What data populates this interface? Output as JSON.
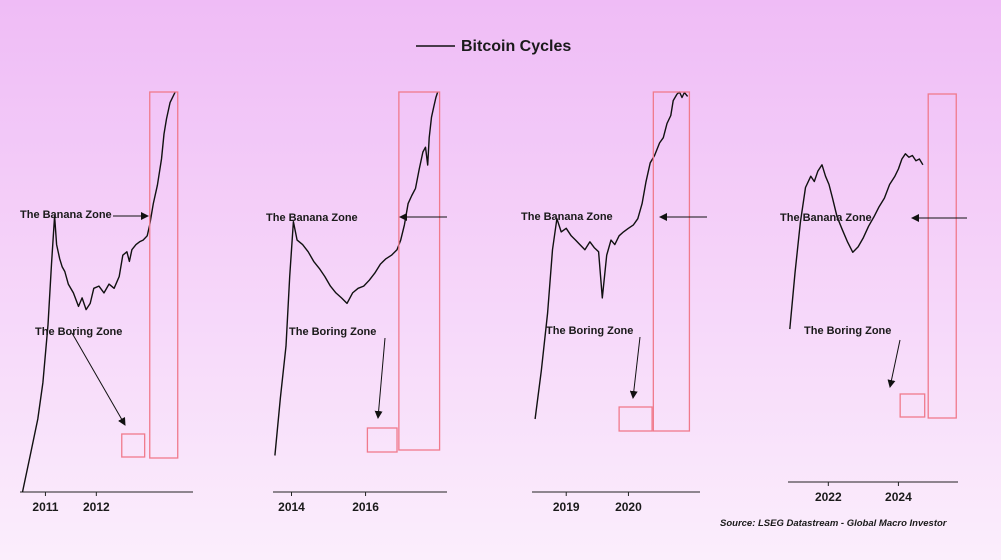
{
  "chart_data": {
    "type": "line",
    "title": "Bitcoin Cycles",
    "legend": {
      "entries": [
        "Bitcoin Cycles"
      ],
      "placement": "top-center"
    },
    "annotation_labels": {
      "banana": "The Banana Zone",
      "boring": "The Boring Zone"
    },
    "source": "Source: LSEG Datastream - Global Macro Investor",
    "style": {
      "line_color": "#111111",
      "box_color": "#f07a8c",
      "arrow_color": "#111111"
    },
    "panels": [
      {
        "tick_labels": [
          "2011",
          "2012"
        ],
        "tick_values": [
          2011,
          2012
        ],
        "xlim": [
          2010.5,
          2013.9
        ],
        "series": {
          "x": [
            2010.55,
            2010.7,
            2010.85,
            2010.95,
            2011.05,
            2011.12,
            2011.18,
            2011.22,
            2011.28,
            2011.33,
            2011.38,
            2011.45,
            2011.55,
            2011.65,
            2011.72,
            2011.8,
            2011.88,
            2011.95,
            2012.05,
            2012.15,
            2012.25,
            2012.35,
            2012.45,
            2012.52,
            2012.6,
            2012.65,
            2012.7,
            2012.78,
            2012.85,
            2012.92,
            2013.0,
            2013.05,
            2013.12,
            2013.2,
            2013.28,
            2013.33,
            2013.38,
            2013.45,
            2013.55
          ],
          "y": [
            0.5,
            1,
            2,
            4,
            12,
            38,
            95,
            55,
            42,
            36,
            33,
            26,
            22,
            17,
            20,
            16,
            18,
            24,
            25,
            22,
            26,
            24,
            30,
            45,
            48,
            40,
            50,
            55,
            58,
            60,
            65,
            80,
            120,
            170,
            280,
            450,
            600,
            820,
            1000
          ]
        },
        "banana_zone": {
          "x_range": [
            2013.05,
            2013.6
          ]
        },
        "boring_zone": {
          "x_range": [
            2012.5,
            2012.95
          ]
        }
      },
      {
        "tick_labels": [
          "2014",
          "2016"
        ],
        "tick_values": [
          2014,
          2016
        ],
        "xlim": [
          2013.5,
          2018.2
        ],
        "series": {
          "x": [
            2013.55,
            2013.7,
            2013.85,
            2013.95,
            2014.05,
            2014.15,
            2014.3,
            2014.45,
            2014.6,
            2014.75,
            2014.9,
            2015.05,
            2015.2,
            2015.35,
            2015.5,
            2015.65,
            2015.8,
            2015.95,
            2016.1,
            2016.25,
            2016.4,
            2016.55,
            2016.7,
            2016.85,
            2016.95,
            2017.05,
            2017.15,
            2017.25,
            2017.35,
            2017.45,
            2017.55,
            2017.62,
            2017.68,
            2017.72,
            2017.78,
            2017.84,
            2017.9,
            2017.95
          ],
          "y": [
            1,
            3,
            8,
            30,
            85,
            60,
            55,
            48,
            40,
            35,
            30,
            25,
            22,
            20,
            18,
            22,
            24,
            25,
            28,
            32,
            38,
            42,
            45,
            50,
            60,
            80,
            120,
            140,
            160,
            230,
            320,
            350,
            250,
            420,
            620,
            750,
            900,
            1000
          ]
        },
        "banana_zone": {
          "x_range": [
            2016.9,
            2018.0
          ]
        },
        "boring_zone": {
          "x_range": [
            2016.05,
            2016.85
          ]
        }
      },
      {
        "tick_labels": [
          "2019",
          "2020"
        ],
        "tick_values": [
          2019,
          2020
        ],
        "xlim": [
          2018.45,
          2021.15
        ],
        "series": {
          "x": [
            2018.5,
            2018.6,
            2018.7,
            2018.78,
            2018.85,
            2018.92,
            2019.0,
            2019.08,
            2019.15,
            2019.22,
            2019.3,
            2019.38,
            2019.45,
            2019.52,
            2019.58,
            2019.65,
            2019.72,
            2019.78,
            2019.85,
            2019.92,
            2020.0,
            2020.08,
            2020.15,
            2020.22,
            2020.28,
            2020.35,
            2020.42,
            2020.5,
            2020.56,
            2020.62,
            2020.68,
            2020.72,
            2020.78,
            2020.82,
            2020.86,
            2020.9,
            2020.95
          ],
          "y": [
            2,
            5,
            15,
            50,
            90,
            70,
            75,
            65,
            60,
            55,
            50,
            58,
            52,
            48,
            20,
            45,
            60,
            55,
            65,
            70,
            75,
            80,
            90,
            120,
            180,
            260,
            300,
            380,
            420,
            550,
            640,
            850,
            960,
            1000,
            900,
            990,
            920
          ]
        },
        "banana_zone": {
          "x_range": [
            2020.4,
            2020.98
          ]
        },
        "boring_zone": {
          "x_range": [
            2019.85,
            2020.38
          ]
        }
      },
      {
        "tick_labels": [
          "2022",
          "2024"
        ],
        "tick_values": [
          2022,
          2024
        ],
        "xlim": [
          2020.85,
          2025.7
        ],
        "series": {
          "x": [
            2020.9,
            2021.05,
            2021.2,
            2021.35,
            2021.5,
            2021.6,
            2021.7,
            2021.82,
            2021.92,
            2022.02,
            2022.12,
            2022.25,
            2022.4,
            2022.55,
            2022.7,
            2022.85,
            2023.0,
            2023.15,
            2023.3,
            2023.45,
            2023.6,
            2023.75,
            2023.9,
            2024.0,
            2024.1,
            2024.2,
            2024.3,
            2024.4,
            2024.5,
            2024.6,
            2024.7
          ],
          "y": [
            10,
            30,
            80,
            160,
            200,
            180,
            220,
            250,
            200,
            170,
            130,
            90,
            70,
            55,
            45,
            50,
            60,
            75,
            90,
            110,
            130,
            170,
            200,
            230,
            280,
            310,
            290,
            300,
            270,
            280,
            250
          ]
        },
        "banana_zone": {
          "x_range": [
            2024.85,
            2025.65
          ]
        },
        "boring_zone": {
          "x_range": [
            2024.05,
            2024.75
          ]
        }
      }
    ]
  }
}
